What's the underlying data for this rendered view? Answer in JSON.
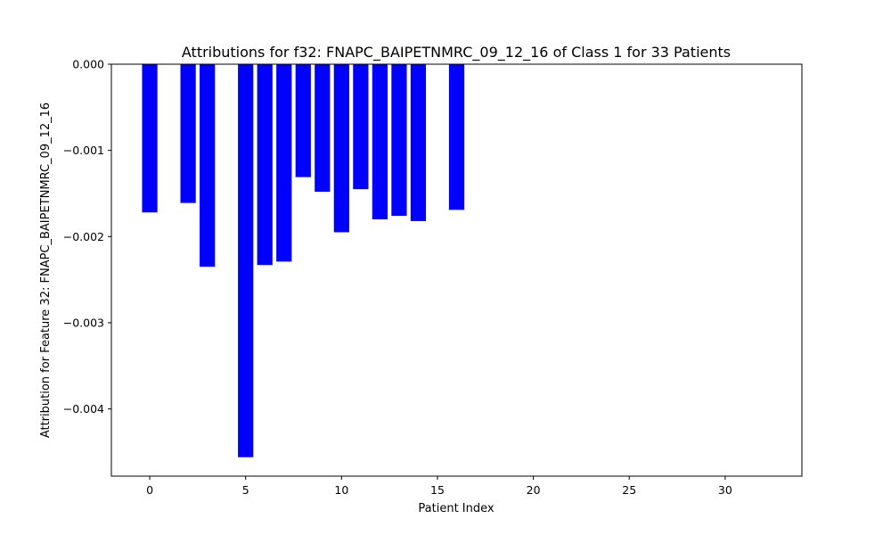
{
  "chart_data": {
    "type": "bar",
    "title": "Attributions for f32: FNAPC_BAIPETNMRC_09_12_16 of Class 1 for 33 Patients",
    "xlabel": "Patient Index",
    "ylabel": "Attribution for Feature 32: FNAPC_BAIPETNMRC_09_12_16",
    "xlim": [
      -2,
      34
    ],
    "ylim": [
      -0.00478,
      0
    ],
    "xticks": [
      0,
      5,
      10,
      15,
      20,
      25,
      30
    ],
    "xtick_labels": [
      "0",
      "5",
      "10",
      "15",
      "20",
      "25",
      "30"
    ],
    "yticks": [
      0,
      -0.001,
      -0.002,
      -0.003,
      -0.004
    ],
    "ytick_labels": [
      "0.000",
      "−0.001",
      "−0.002",
      "−0.003",
      "−0.004"
    ],
    "bar_color": "#0000ff",
    "grid": false,
    "legend": "none",
    "x": [
      0,
      2,
      3,
      5,
      6,
      7,
      8,
      9,
      10,
      11,
      12,
      13,
      14,
      16
    ],
    "values": [
      -0.00172,
      -0.00161,
      -0.00235,
      -0.00456,
      -0.00233,
      -0.00229,
      -0.00131,
      -0.00148,
      -0.00195,
      -0.00145,
      -0.0018,
      -0.00176,
      -0.00182,
      -0.00169
    ]
  }
}
